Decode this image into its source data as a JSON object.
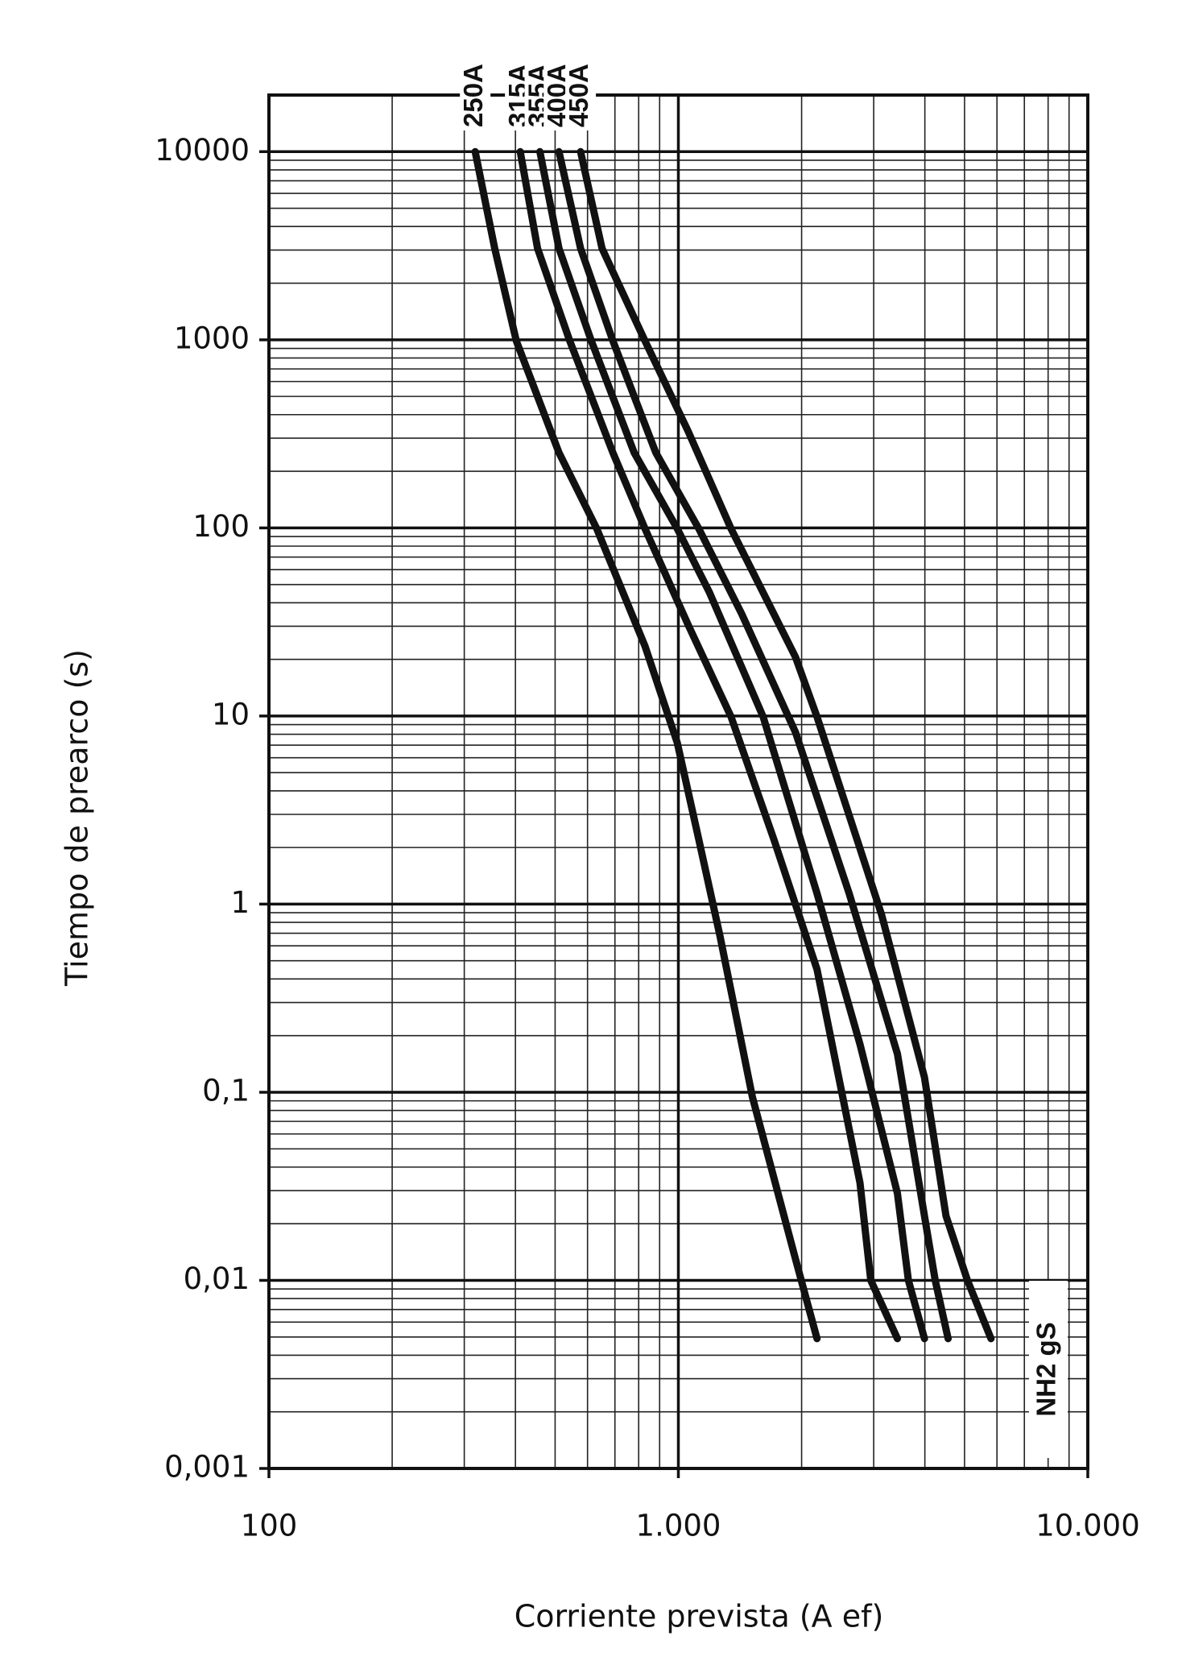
{
  "chart_data": {
    "type": "line",
    "x_label": "Corriente prevista (A ef)",
    "y_label": "Tiempo de prearco (s)",
    "annotation": "NH2  gS",
    "xscale": "log",
    "yscale": "log",
    "grid": true,
    "xlim": [
      100,
      10000
    ],
    "xticks": [
      100,
      {
        "value": 1000,
        "label": "1.000"
      },
      {
        "value": 10000,
        "label": "10.000"
      }
    ],
    "ylim": [
      0.001,
      20000
    ],
    "yticks": [
      {
        "value": 0.001,
        "label": "0,001"
      },
      {
        "value": 0.01,
        "label": "0,01"
      },
      {
        "value": 0.1,
        "label": "0,1"
      },
      1,
      10,
      100,
      1000,
      10000
    ],
    "series": [
      {
        "name": "250A",
        "color": "#111111",
        "x": [
          319,
          356,
          402,
          511,
          632,
          829,
          994,
          1122,
          1265,
          1517,
          1932,
          2181
        ],
        "values": [
          10000,
          3060,
          986,
          251,
          99,
          23.5,
          7.2,
          2.2,
          0.67,
          0.094,
          0.013,
          0.0049
        ]
      },
      {
        "name": "315A",
        "color": "#111111",
        "x": [
          411,
          453,
          543,
          692,
          829,
          1056,
          1345,
          1712,
          2181,
          2777,
          2951,
          3428
        ],
        "values": [
          10000,
          3060,
          986,
          251,
          99,
          30.6,
          9.9,
          2.2,
          0.45,
          0.033,
          0.01,
          0.0049
        ]
      },
      {
        "name": "355A",
        "color": "#111111",
        "x": [
          459,
          511,
          613,
          780,
          994,
          1191,
          1611,
          2181,
          2777,
          3428,
          3646,
          3991
        ],
        "values": [
          10000,
          3060,
          986,
          251,
          99,
          45.4,
          9.9,
          1.14,
          0.18,
          0.029,
          0.01,
          0.0049
        ]
      },
      {
        "name": "400A",
        "color": "#111111",
        "x": [
          511,
          577,
          692,
          881,
          1122,
          1428,
          1932,
          2613,
          3428,
          3991,
          4240,
          4559
        ],
        "values": [
          10000,
          3060,
          986,
          251,
          99,
          34.9,
          8.2,
          1.14,
          0.16,
          0.022,
          0.01,
          0.0049
        ]
      },
      {
        "name": "450A",
        "color": "#111111",
        "x": [
          577,
          651,
          829,
          1056,
          1345,
          1932,
          2181,
          3135,
          3991,
          4505,
          5082,
          5802
        ],
        "values": [
          10000,
          3060,
          986,
          327,
          99,
          20.6,
          9.9,
          0.88,
          0.12,
          0.022,
          0.01,
          0.0049
        ]
      }
    ]
  }
}
